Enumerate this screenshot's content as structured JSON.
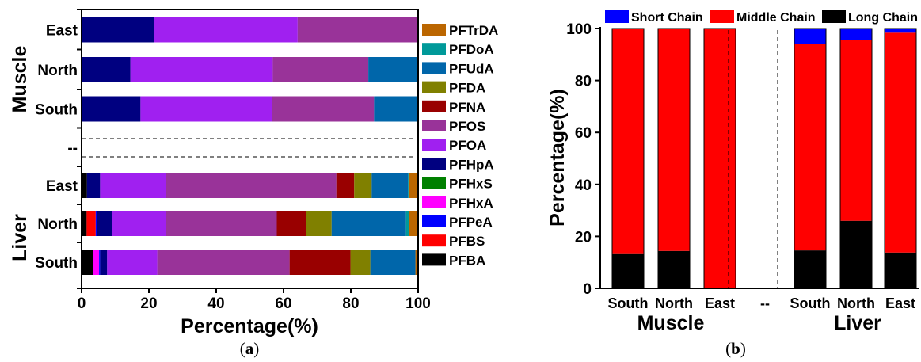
{
  "figure": {
    "label_a": "(a)",
    "label_a_letter": "a",
    "label_b": "(b)",
    "label_b_letter": "b"
  },
  "chart_data": [
    {
      "type": "bar",
      "orientation": "horizontal",
      "stacked": true,
      "xlabel": "Percentage(%)",
      "xlim": [
        0,
        100
      ],
      "xticks": [
        "0",
        "20",
        "40",
        "60",
        "80",
        "100"
      ],
      "group_labels": [
        "Muscle",
        "Liver"
      ],
      "separator_label": "--",
      "categories": [
        "East",
        "North",
        "South",
        "--",
        "East",
        "North",
        "South"
      ],
      "legend_order": [
        "PFTrDA",
        "PFDoA",
        "PFUdA",
        "PFDA",
        "PFNA",
        "PFOS",
        "PFOA",
        "PFHpA",
        "PFHxS",
        "PFHxA",
        "PFPeA",
        "PFBS",
        "PFBA"
      ],
      "colors": {
        "PFBA": "#000000",
        "PFBS": "#ff0000",
        "PFPeA": "#0000ff",
        "PFHxA": "#ff00ff",
        "PFHxS": "#008000",
        "PFHpA": "#000080",
        "PFOA": "#a020f0",
        "PFOS": "#993399",
        "PFNA": "#990000",
        "PFDA": "#808000",
        "PFUdA": "#0066aa",
        "PFDoA": "#009999",
        "PFTrDA": "#bb6600"
      },
      "bars": [
        {
          "category": "East",
          "group": "Muscle",
          "segments": [
            [
              "PFHpA",
              21.5
            ],
            [
              "PFOA",
              42.7
            ],
            [
              "PFOS",
              35.8
            ]
          ]
        },
        {
          "category": "North",
          "group": "Muscle",
          "segments": [
            [
              "PFHpA",
              14.5
            ],
            [
              "PFOA",
              42.3
            ],
            [
              "PFOS",
              28.4
            ],
            [
              "PFUdA",
              14.8
            ]
          ]
        },
        {
          "category": "South",
          "group": "Muscle",
          "segments": [
            [
              "PFHpA",
              17.5
            ],
            [
              "PFOA",
              39.1
            ],
            [
              "PFOS",
              30.3
            ],
            [
              "PFUdA",
              13.1
            ]
          ]
        },
        {
          "category": "East",
          "group": "Liver",
          "segments": [
            [
              "PFBA",
              1.6
            ],
            [
              "PFHpA",
              3.9
            ],
            [
              "PFOA",
              19.6
            ],
            [
              "PFOS",
              50.6
            ],
            [
              "PFNA",
              5.3
            ],
            [
              "PFDA",
              5.2
            ],
            [
              "PFUdA",
              10.8
            ],
            [
              "PFDoA",
              0.2
            ],
            [
              "PFTrDA",
              2.8
            ]
          ]
        },
        {
          "category": "North",
          "group": "Liver",
          "segments": [
            [
              "PFBA",
              1.5
            ],
            [
              "PFBS",
              2.7
            ],
            [
              "PFPeA",
              0.3
            ],
            [
              "PFHxA",
              0.2
            ],
            [
              "PFHpA",
              4.4
            ],
            [
              "PFOA",
              16.0
            ],
            [
              "PFOS",
              32.9
            ],
            [
              "PFNA",
              8.8
            ],
            [
              "PFDA",
              7.5
            ],
            [
              "PFUdA",
              22.1
            ],
            [
              "PFDoA",
              1.0
            ],
            [
              "PFTrDA",
              2.6
            ]
          ]
        },
        {
          "category": "South",
          "group": "Liver",
          "segments": [
            [
              "PFBA",
              3.4
            ],
            [
              "PFHxA",
              1.8
            ],
            [
              "PFPeA",
              0.3
            ],
            [
              "PFHpA",
              2.1
            ],
            [
              "PFOA",
              14.9
            ],
            [
              "PFOS",
              39.3
            ],
            [
              "PFNA",
              18.1
            ],
            [
              "PFDA",
              5.9
            ],
            [
              "PFUdA",
              13.4
            ],
            [
              "PFTrDA",
              0.8
            ]
          ]
        }
      ]
    },
    {
      "type": "bar",
      "stacked": true,
      "ylabel": "Percentage(%)",
      "ylim": [
        0,
        100
      ],
      "yticks": [
        "0",
        "20",
        "40",
        "60",
        "80",
        "100"
      ],
      "categories": [
        "South",
        "North",
        "East",
        "--",
        "South",
        "North",
        "East"
      ],
      "group_labels": [
        "Muscle",
        "Liver"
      ],
      "legend": [
        "Short Chain",
        "Middle Chain",
        "Long Chain"
      ],
      "colors": {
        "Short Chain": "#0000ff",
        "Middle Chain": "#ff0000",
        "Long Chain": "#000000"
      },
      "series": [
        {
          "name": "Long Chain",
          "values": [
            13.2,
            14.4,
            0,
            null,
            14.6,
            26.0,
            13.8
          ]
        },
        {
          "name": "Middle Chain",
          "values": [
            86.8,
            85.6,
            100,
            null,
            79.6,
            69.6,
            84.6
          ]
        },
        {
          "name": "Short Chain",
          "values": [
            0,
            0,
            0,
            null,
            5.8,
            4.4,
            1.6
          ]
        }
      ]
    }
  ]
}
